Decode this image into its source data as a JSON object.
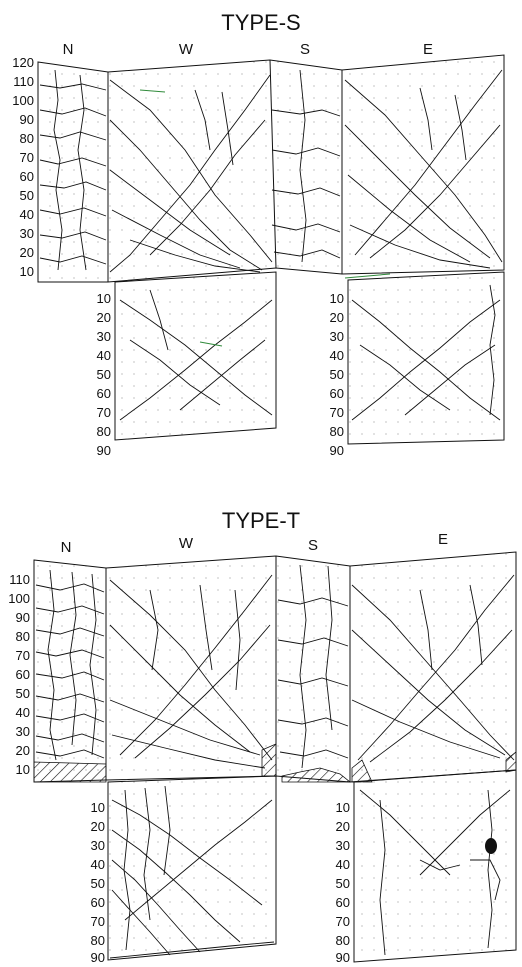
{
  "panels": [
    {
      "id": "s",
      "title": "TYPE-S",
      "faces": [
        "N",
        "W",
        "S",
        "E"
      ],
      "upper_ticks": [
        "120",
        "110",
        "100",
        "90",
        "80",
        "70",
        "60",
        "50",
        "40",
        "30",
        "20",
        "10"
      ],
      "lower_ticks_left": [
        "10",
        "20",
        "30",
        "40",
        "50",
        "60",
        "70",
        "80",
        "90"
      ],
      "lower_ticks_right": [
        "10",
        "20",
        "30",
        "40",
        "50",
        "60",
        "70",
        "80",
        "90"
      ]
    },
    {
      "id": "t",
      "title": "TYPE-T",
      "faces": [
        "N",
        "W",
        "S",
        "E"
      ],
      "upper_ticks": [
        "110",
        "100",
        "90",
        "80",
        "70",
        "60",
        "50",
        "40",
        "30",
        "20",
        "10"
      ],
      "lower_ticks_left": [
        "10",
        "20",
        "30",
        "40",
        "50",
        "60",
        "70",
        "80",
        "90"
      ],
      "lower_ticks_right": [
        "10",
        "20",
        "30",
        "40",
        "50",
        "60",
        "70",
        "80",
        "90"
      ]
    }
  ],
  "colors": {
    "ink": "#111111",
    "grid_dots": "#9a9a9a",
    "crack_accent": "#2f8a3a",
    "background": "#ffffff"
  }
}
